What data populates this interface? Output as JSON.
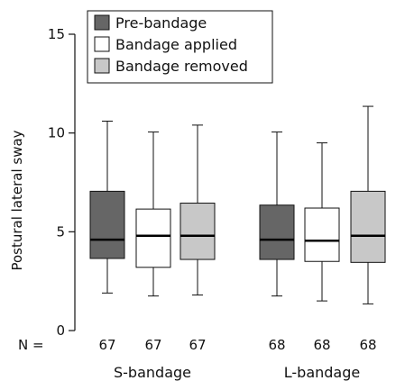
{
  "chart_data": {
    "type": "box",
    "ylabel": "Postural lateral sway",
    "ylim": [
      0,
      15
    ],
    "yticks": [
      0,
      5,
      10,
      15
    ],
    "n_prefix": "N =",
    "legend": {
      "placement": "top",
      "entries": [
        {
          "name": "Pre-bandage",
          "color": "#666666"
        },
        {
          "name": "Bandage applied",
          "color": "#ffffff"
        },
        {
          "name": "Bandage removed",
          "color": "#c8c8c8"
        }
      ]
    },
    "groups": [
      {
        "name": "S-bandage",
        "boxes": [
          {
            "series": "Pre-bandage",
            "n": "67",
            "min": 1.9,
            "q1": 3.65,
            "median": 4.6,
            "q3": 7.05,
            "max": 10.6
          },
          {
            "series": "Bandage applied",
            "n": "67",
            "min": 1.75,
            "q1": 3.2,
            "median": 4.8,
            "q3": 6.15,
            "max": 10.05
          },
          {
            "series": "Bandage removed",
            "n": "67",
            "min": 1.8,
            "q1": 3.6,
            "median": 4.8,
            "q3": 6.45,
            "max": 10.4
          }
        ]
      },
      {
        "name": "L-bandage",
        "boxes": [
          {
            "series": "Pre-bandage",
            "n": "68",
            "min": 1.75,
            "q1": 3.6,
            "median": 4.6,
            "q3": 6.35,
            "max": 10.05
          },
          {
            "series": "Bandage applied",
            "n": "68",
            "min": 1.5,
            "q1": 3.5,
            "median": 4.55,
            "q3": 6.2,
            "max": 9.5
          },
          {
            "series": "Bandage removed",
            "n": "68",
            "min": 1.35,
            "q1": 3.45,
            "median": 4.8,
            "q3": 7.05,
            "max": 11.35
          }
        ]
      }
    ]
  }
}
